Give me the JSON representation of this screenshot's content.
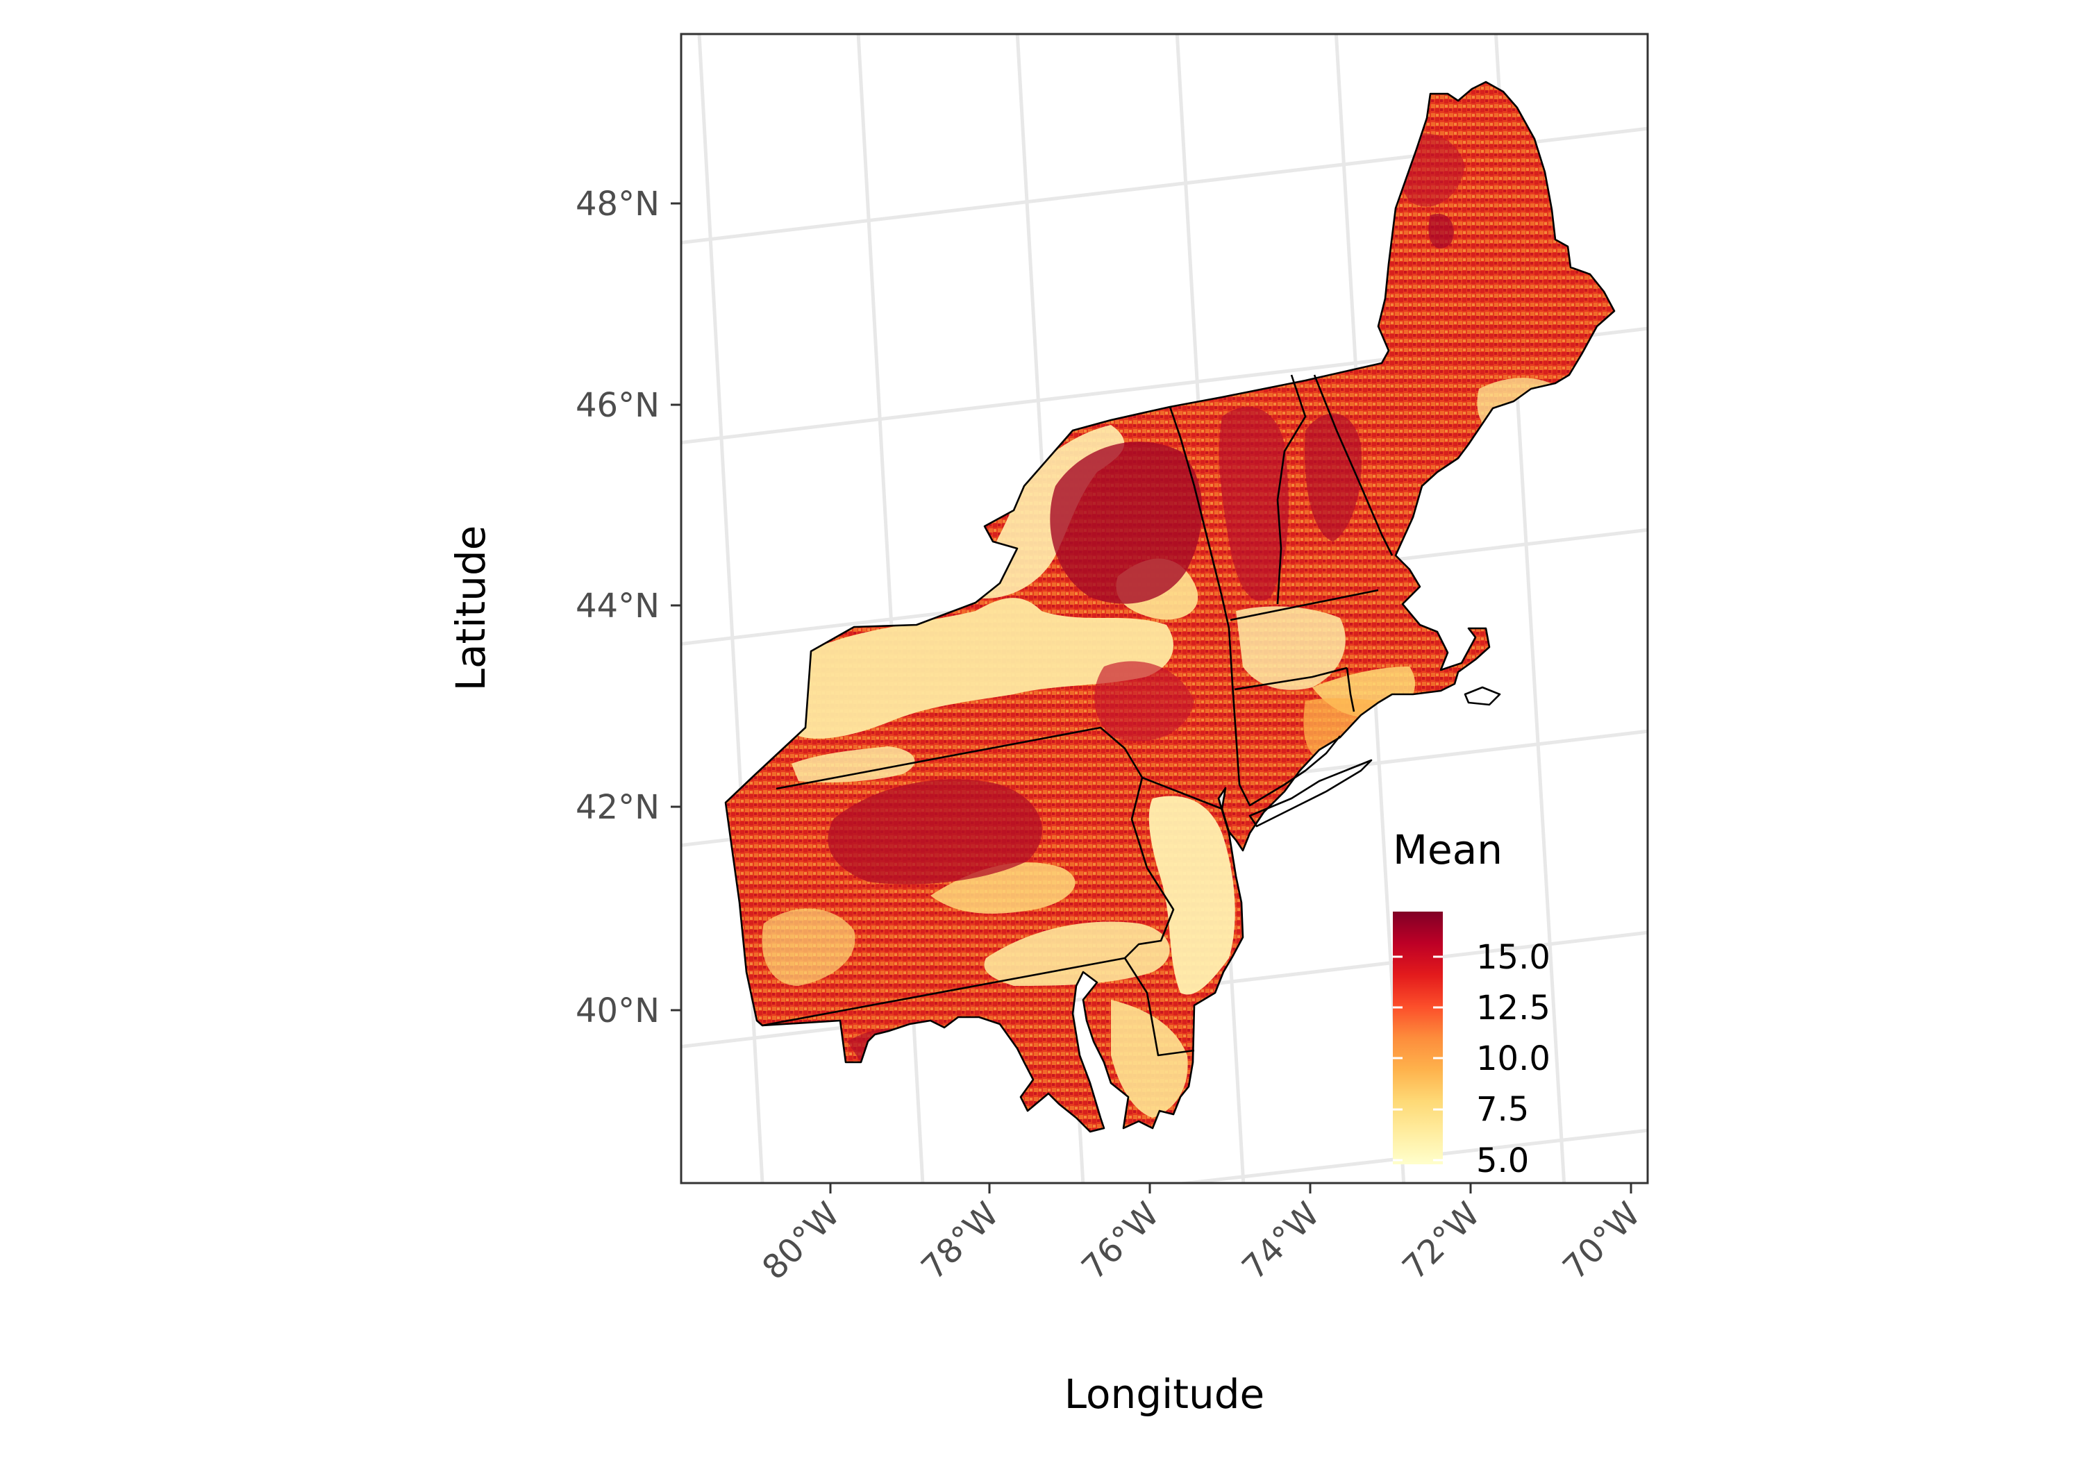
{
  "map": {
    "x_axis_title": "Longitude",
    "y_axis_title": "Latitude",
    "lon_ticks": [
      "80°W",
      "78°W",
      "76°W",
      "74°W",
      "72°W",
      "70°W"
    ],
    "lat_ticks": [
      "48°N",
      "46°N",
      "44°N",
      "42°N",
      "40°N"
    ],
    "legend": {
      "title": "Mean",
      "labels": [
        "15.0",
        "12.5",
        "10.0",
        "7.5",
        "5.0"
      ],
      "colors": [
        "#800026",
        "#bd0026",
        "#e31a1c",
        "#fc4e2a",
        "#fd8d3c",
        "#feb24c",
        "#fed976",
        "#ffeda0",
        "#ffffcc"
      ]
    }
  }
}
